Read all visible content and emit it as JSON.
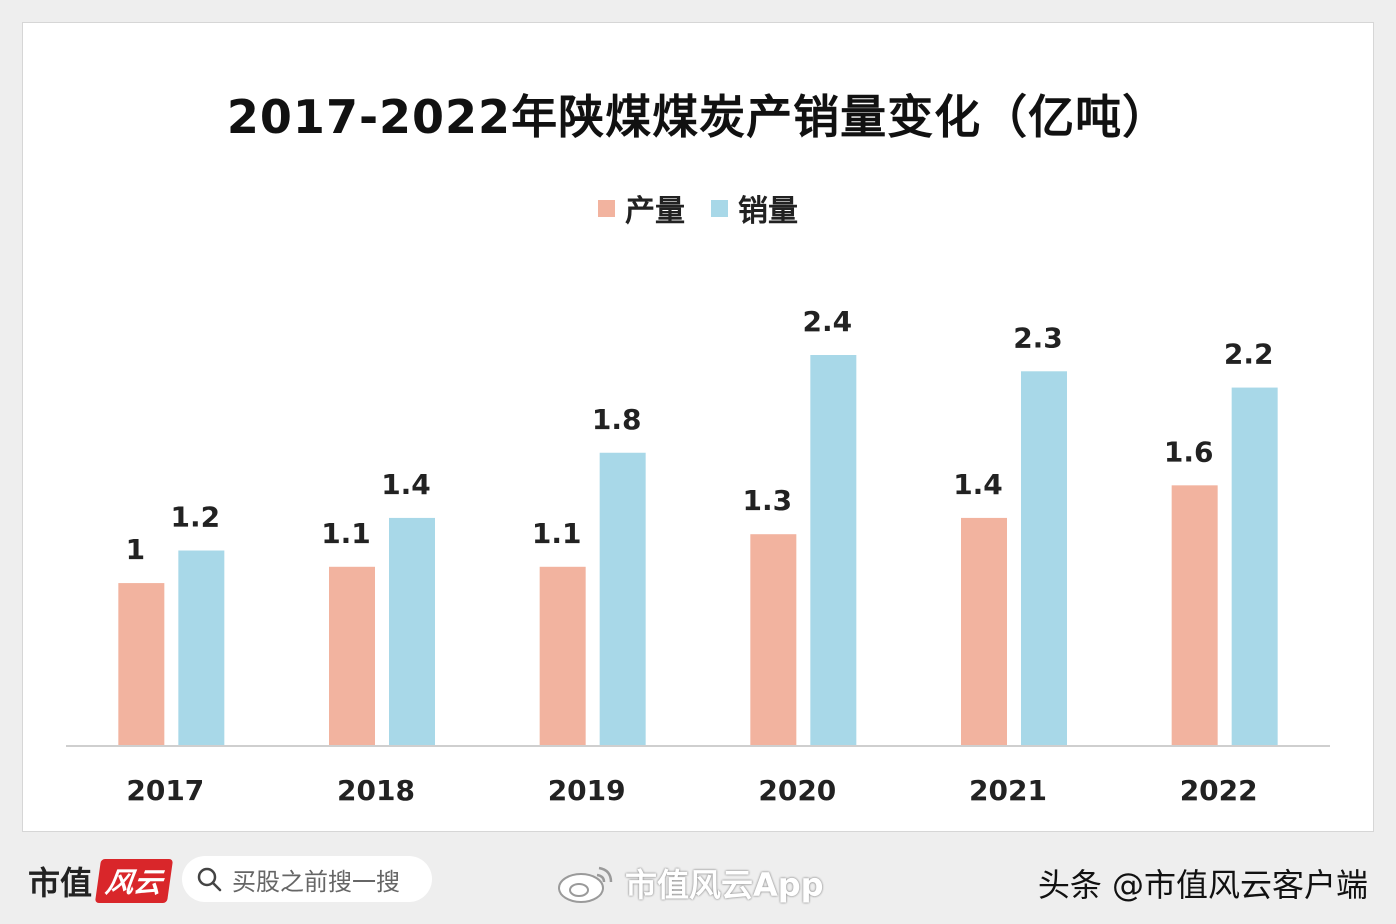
{
  "chart_data": {
    "type": "bar",
    "title": "2017-2022年陕煤煤炭产销量变化（亿吨）",
    "categories": [
      "2017",
      "2018",
      "2019",
      "2020",
      "2021",
      "2022"
    ],
    "series": [
      {
        "name": "产量",
        "color": "#f2b39f",
        "values": [
          1,
          1.1,
          1.1,
          1.3,
          1.4,
          1.6
        ]
      },
      {
        "name": "销量",
        "color": "#a8d8e8",
        "values": [
          1.2,
          1.4,
          1.8,
          2.4,
          2.3,
          2.2
        ]
      }
    ],
    "ylim": [
      0,
      2.4
    ],
    "grid": false,
    "legend_position": "top-center"
  },
  "footer": {
    "brand_name": "市值",
    "brand_logo_text": "风云",
    "search_placeholder": "买股之前搜一搜",
    "app_watermark": "市值风云App",
    "source_text": "头条 @市值风云客户端"
  }
}
